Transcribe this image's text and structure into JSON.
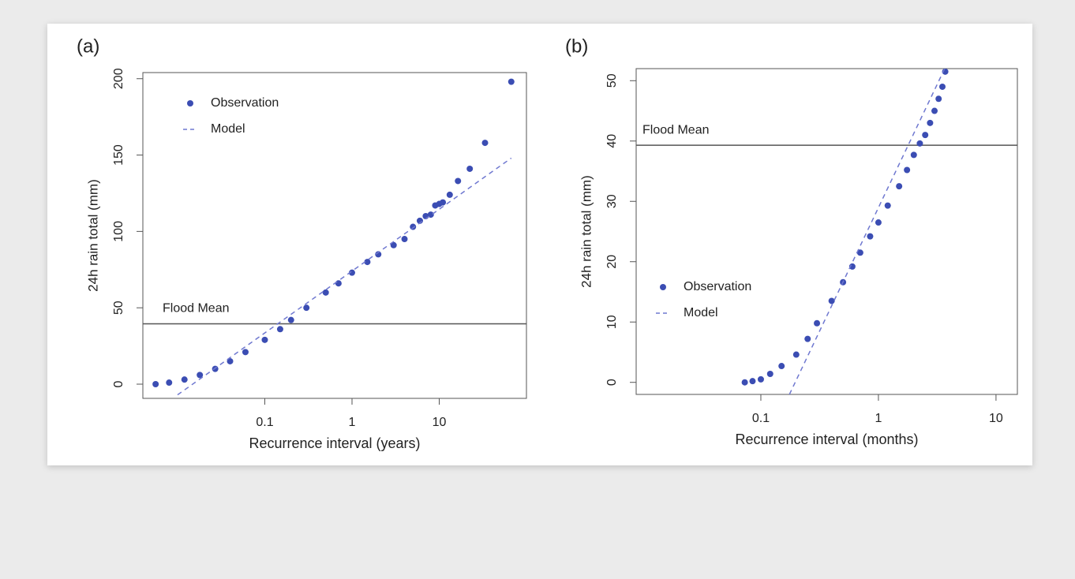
{
  "chart_data": [
    {
      "type": "scatter",
      "title": "(a)",
      "x_label": "Recurrence interval (years)",
      "y_label": "24h rain total (mm)",
      "xscale": "log",
      "xlim": [
        0.004,
        100
      ],
      "xticks": [
        0.1,
        1,
        10
      ],
      "ylim": [
        -9.3,
        204
      ],
      "yticks": [
        0,
        50,
        100,
        150,
        200
      ],
      "hline": {
        "value": 39.5,
        "label": "Flood Mean"
      },
      "legend": "upper left",
      "series": [
        {
          "name": "Observation",
          "color": "#3b4db3",
          "style": "points",
          "x": [
            0.0056,
            0.008,
            0.012,
            0.018,
            0.027,
            0.04,
            0.06,
            0.1,
            0.15,
            0.2,
            0.3,
            0.5,
            0.7,
            1,
            1.5,
            2,
            3,
            4,
            5,
            6,
            7,
            8,
            9,
            10,
            11,
            13.2,
            16.4,
            22.4,
            33.5,
            67
          ],
          "values": [
            0,
            1,
            3,
            6,
            10,
            15,
            21,
            29,
            36,
            42,
            50,
            60,
            66,
            73,
            80,
            85,
            91,
            95,
            103,
            107,
            110,
            111,
            117,
            118,
            119,
            124,
            133,
            141,
            158,
            198
          ]
        },
        {
          "name": "Model",
          "color": "#6f78d0",
          "style": "dashed",
          "x": [
            0.01,
            67
          ],
          "values": [
            -7,
            148
          ]
        }
      ]
    },
    {
      "type": "scatter",
      "title": "(b)",
      "x_label": "Recurrence interval (months)",
      "y_label": "24h rain total (mm)",
      "xscale": "log",
      "xlim": [
        0.0087,
        15.2
      ],
      "xticks": [
        0.1,
        1,
        10
      ],
      "ylim": [
        -2,
        52
      ],
      "yticks": [
        0,
        10,
        20,
        30,
        40,
        50
      ],
      "hline": {
        "value": 39.3,
        "label": "Flood Mean"
      },
      "legend": "center left",
      "series": [
        {
          "name": "Observation",
          "color": "#3b4db3",
          "style": "points",
          "x": [
            0.073,
            0.085,
            0.1,
            0.12,
            0.15,
            0.2,
            0.25,
            0.3,
            0.4,
            0.5,
            0.6,
            0.7,
            0.85,
            1,
            1.2,
            1.5,
            1.75,
            2,
            2.25,
            2.5,
            2.75,
            3,
            3.25,
            3.5,
            3.7
          ],
          "values": [
            0,
            0.2,
            0.5,
            1.4,
            2.7,
            4.6,
            7.2,
            9.8,
            13.5,
            16.6,
            19.2,
            21.5,
            24.2,
            26.5,
            29.3,
            32.5,
            35.2,
            37.7,
            39.6,
            41,
            43,
            45,
            47,
            49,
            51.5
          ]
        },
        {
          "name": "Model",
          "color": "#6f78d0",
          "style": "dashed",
          "x": [
            0.175,
            3.66
          ],
          "values": [
            -2,
            52
          ]
        }
      ]
    }
  ]
}
